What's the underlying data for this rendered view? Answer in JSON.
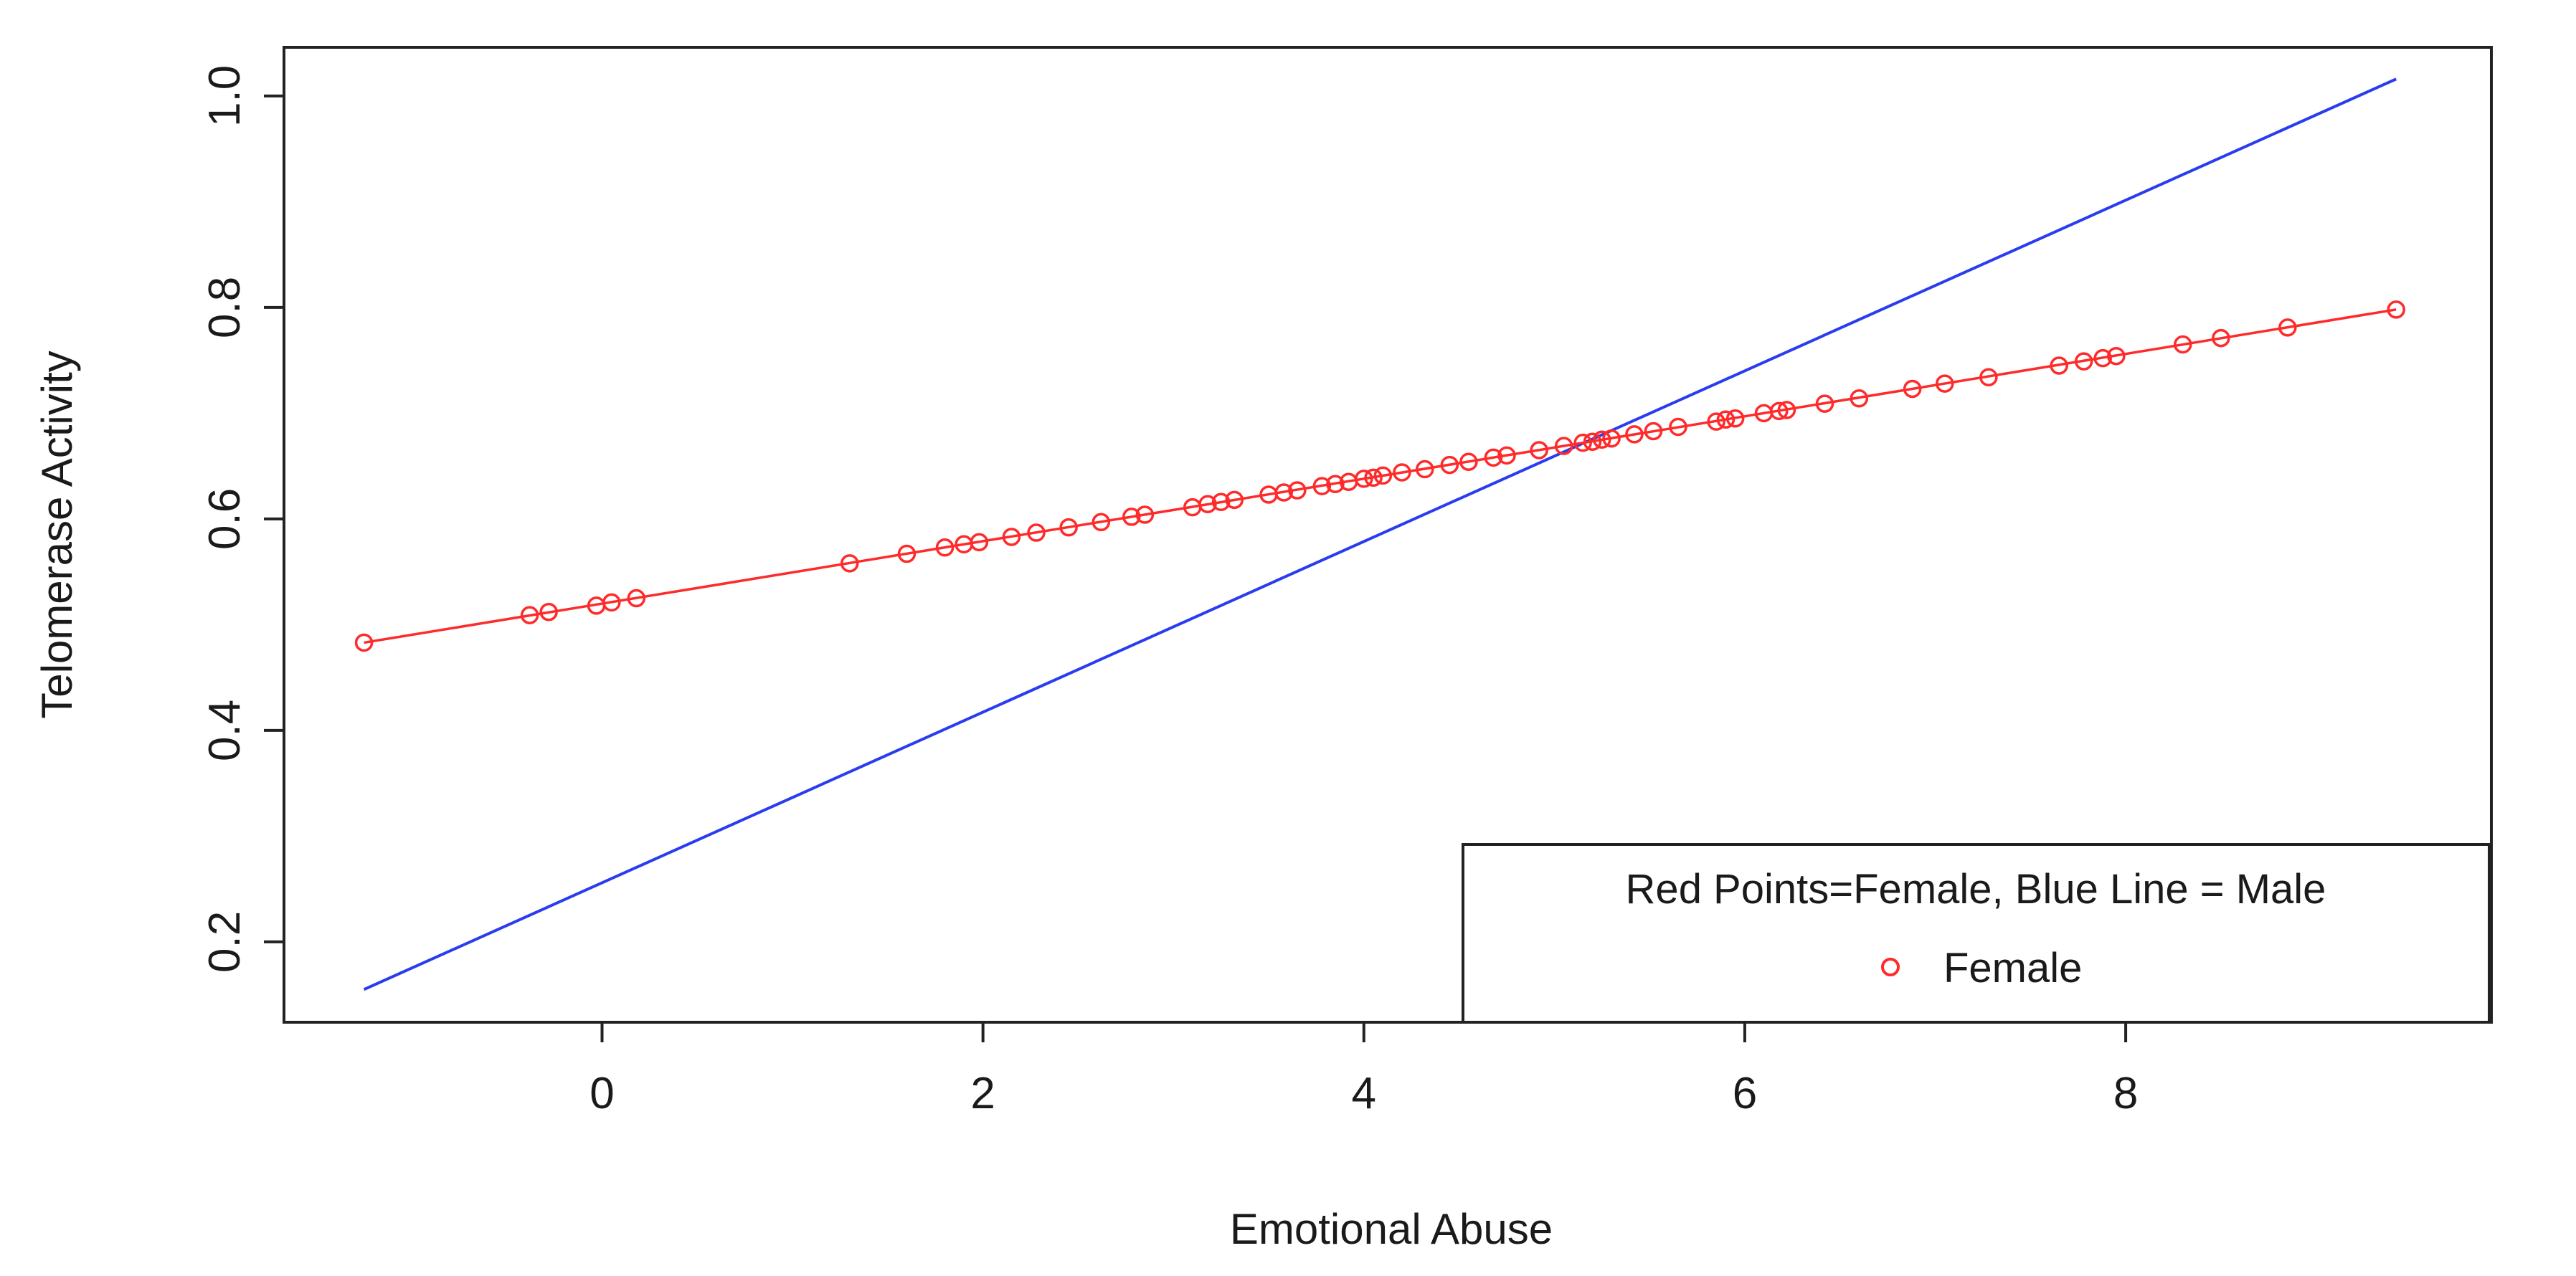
{
  "chart_data": {
    "type": "scatter",
    "title": "",
    "xlabel": "Emotional Abuse",
    "ylabel": "Telomerase Activity",
    "xlim": [
      -1.67,
      9.92
    ],
    "ylim": [
      0.124,
      1.046
    ],
    "xticks": [
      0,
      2,
      4,
      6,
      8
    ],
    "xtick_labels": [
      "0",
      "2",
      "4",
      "6",
      "8"
    ],
    "yticks": [
      0.2,
      0.4,
      0.6,
      0.8,
      1.0
    ],
    "ytick_labels": [
      "0.2",
      "0.4",
      "0.6",
      "0.8",
      "1.0"
    ],
    "grid": false,
    "legend": {
      "placement": "bottom-right",
      "title": "Red Points=Female, Blue Line = Male",
      "entries": [
        "Female"
      ]
    },
    "series": [
      {
        "name": "Female",
        "kind": "points-with-line",
        "color": "#ff2a2a",
        "x": [
          -1.25,
          -0.38,
          -0.28,
          -0.03,
          0.05,
          0.18,
          1.3,
          1.6,
          1.8,
          1.9,
          1.98,
          2.15,
          2.28,
          2.45,
          2.62,
          2.78,
          2.85,
          3.1,
          3.18,
          3.25,
          3.32,
          3.5,
          3.58,
          3.65,
          3.78,
          3.85,
          3.92,
          4.0,
          4.05,
          4.1,
          4.2,
          4.32,
          4.45,
          4.55,
          4.68,
          4.75,
          4.92,
          5.05,
          5.15,
          5.2,
          5.25,
          5.3,
          5.42,
          5.52,
          5.65,
          5.85,
          5.9,
          5.95,
          6.1,
          6.18,
          6.22,
          6.42,
          6.6,
          6.88,
          7.05,
          7.28,
          7.65,
          7.78,
          7.88,
          7.95,
          8.3,
          8.5,
          8.85,
          9.42
        ],
        "y": [
          0.483,
          0.509,
          0.512,
          0.518,
          0.521,
          0.525,
          0.558,
          0.567,
          0.573,
          0.576,
          0.578,
          0.583,
          0.587,
          0.592,
          0.597,
          0.602,
          0.604,
          0.611,
          0.614,
          0.616,
          0.618,
          0.623,
          0.625,
          0.627,
          0.631,
          0.633,
          0.635,
          0.638,
          0.639,
          0.641,
          0.644,
          0.647,
          0.651,
          0.654,
          0.658,
          0.66,
          0.665,
          0.669,
          0.672,
          0.673,
          0.675,
          0.676,
          0.68,
          0.683,
          0.687,
          0.692,
          0.694,
          0.695,
          0.7,
          0.702,
          0.703,
          0.709,
          0.714,
          0.723,
          0.728,
          0.734,
          0.745,
          0.749,
          0.752,
          0.754,
          0.765,
          0.771,
          0.781,
          0.798
        ]
      },
      {
        "name": "Male",
        "kind": "line",
        "color": "#2a3cf0",
        "x": [
          -1.25,
          9.42
        ],
        "y": [
          0.155,
          1.016
        ]
      }
    ]
  }
}
